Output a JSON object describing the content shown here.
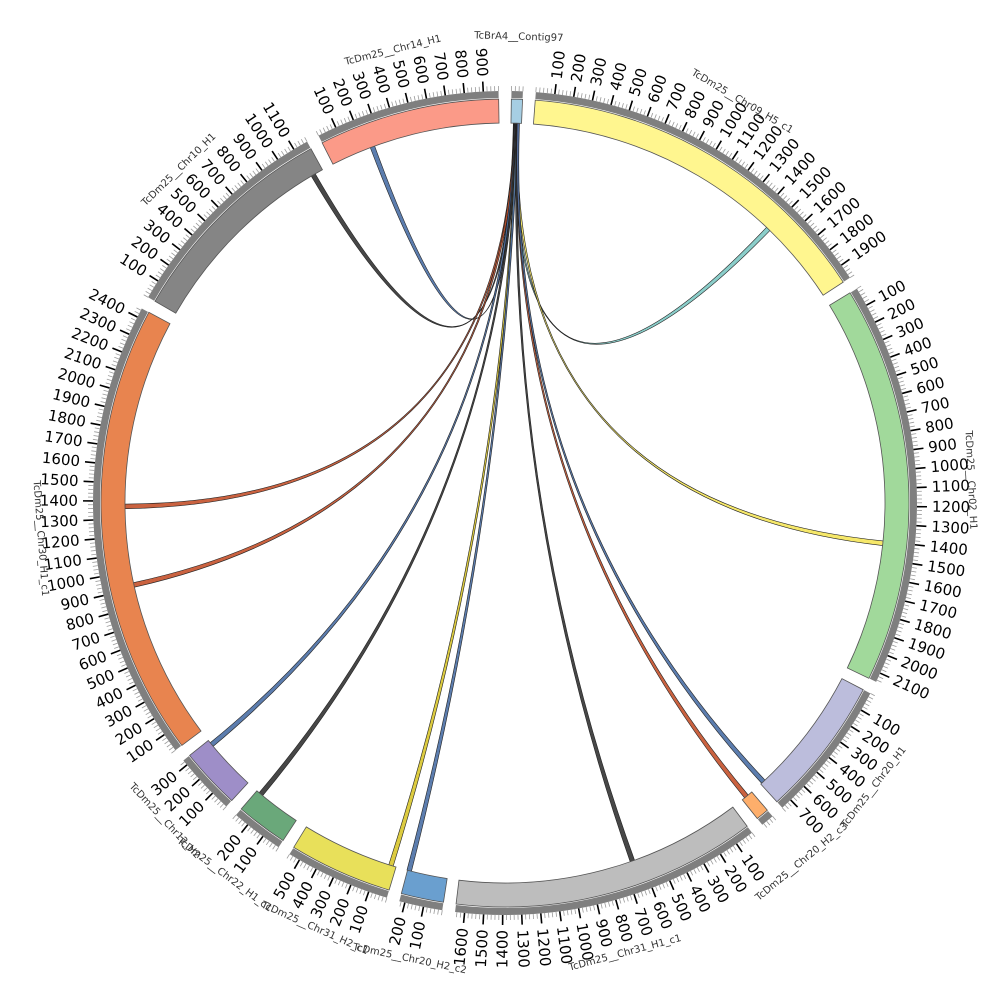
{
  "diagram": {
    "type": "circos",
    "chromosomes": [
      {
        "name": "TcBrA4__Contig97",
        "length": 60,
        "color": "#a6cee3",
        "tick_labels": []
      },
      {
        "name": "TcDm25__Chr09_H5_c1",
        "length": 1980,
        "color": "#fff68f",
        "tick_labels": [
          "100",
          "200",
          "300",
          "400",
          "500",
          "600",
          "700",
          "800",
          "900",
          "1000",
          "1100",
          "1200",
          "1300",
          "1400",
          "1500",
          "1600",
          "1700",
          "1800",
          "1900"
        ]
      },
      {
        "name": "TcDm25__Chr02_H1",
        "length": 2150,
        "color": "#a1d99b",
        "tick_labels": [
          "100",
          "200",
          "300",
          "400",
          "500",
          "600",
          "700",
          "800",
          "900",
          "1000",
          "1100",
          "1200",
          "1300",
          "1400",
          "1500",
          "1600",
          "1700",
          "1800",
          "1900",
          "2000",
          "2100"
        ]
      },
      {
        "name": "TcDm25__Chr20_H1",
        "length": 760,
        "color": "#bcbddc",
        "tick_labels": [
          "100",
          "200",
          "300",
          "400",
          "500",
          "600",
          "700"
        ]
      },
      {
        "name": "TcDm25__Chr20_H2_c3",
        "length": 70,
        "color": "#fdae6b",
        "tick_labels": []
      },
      {
        "name": "TcDm25__Chr31_H1_c1",
        "length": 1650,
        "color": "#bdbdbd",
        "tick_labels": [
          "100",
          "200",
          "300",
          "400",
          "500",
          "600",
          "700",
          "800",
          "900",
          "1000",
          "1100",
          "1200",
          "1300",
          "1400",
          "1500",
          "1600"
        ]
      },
      {
        "name": "TcDm25__Chr20_H2_c2",
        "length": 230,
        "color": "#6a9fcf",
        "tick_labels": [
          "100",
          "200"
        ]
      },
      {
        "name": "TcDm25__Chr31_H2_c1",
        "length": 560,
        "color": "#e8e05a",
        "tick_labels": [
          "100",
          "200",
          "300",
          "400",
          "500"
        ]
      },
      {
        "name": "TcDm25__Chr22_H1_c1",
        "length": 280,
        "color": "#6aa87a",
        "tick_labels": [
          "100",
          "200"
        ]
      },
      {
        "name": "TcDm25__Chr12_H2",
        "length": 330,
        "color": "#9e8ec8",
        "tick_labels": [
          "100",
          "200",
          "300"
        ]
      },
      {
        "name": "TcDm25__Chr30_H1_c1",
        "length": 2450,
        "color": "#e8844f",
        "tick_labels": [
          "100",
          "200",
          "300",
          "400",
          "500",
          "600",
          "700",
          "800",
          "900",
          "1000",
          "1100",
          "1200",
          "1300",
          "1400",
          "1500",
          "1600",
          "1700",
          "1800",
          "1900",
          "2000",
          "2100",
          "2200",
          "2300",
          "2400"
        ]
      },
      {
        "name": "TcDm25__Chr10_H1",
        "length": 1180,
        "color": "#858585",
        "tick_labels": [
          "100",
          "200",
          "300",
          "400",
          "500",
          "600",
          "700",
          "800",
          "900",
          "1000",
          "1100"
        ]
      },
      {
        "name": "TcDm25__Chr14_H1",
        "length": 980,
        "color": "#fb9a88",
        "tick_labels": [
          "100",
          "200",
          "300",
          "400",
          "500",
          "600",
          "700",
          "800",
          "900"
        ]
      }
    ],
    "links": [
      {
        "source": "TcBrA4__Contig97",
        "source_pos": 20,
        "target": "TcDm25__Chr10_H1",
        "target_pos": 1120,
        "color": "#333333"
      },
      {
        "source": "TcBrA4__Contig97",
        "source_pos": 22,
        "target": "TcDm25__Chr14_H1",
        "target_pos": 245,
        "color": "#4a6fa5"
      },
      {
        "source": "TcBrA4__Contig97",
        "source_pos": 30,
        "target": "TcDm25__Chr09_H5_c1",
        "target_pos": 1490,
        "color": "#7ec9c4"
      },
      {
        "source": "TcBrA4__Contig97",
        "source_pos": 35,
        "target": "TcDm25__Chr02_H1",
        "target_pos": 1410,
        "color": "#f5e65a"
      },
      {
        "source": "TcBrA4__Contig97",
        "source_pos": 24,
        "target": "TcDm25__Chr30_H1_c1",
        "target_pos": 1370,
        "color": "#c4512b"
      },
      {
        "source": "TcBrA4__Contig97",
        "source_pos": 26,
        "target": "TcDm25__Chr30_H1_c1",
        "target_pos": 920,
        "color": "#c4512b"
      },
      {
        "source": "TcBrA4__Contig97",
        "source_pos": 28,
        "target": "TcDm25__Chr12_H2",
        "target_pos": 300,
        "color": "#4a6fa5"
      },
      {
        "source": "TcBrA4__Contig97",
        "source_pos": 32,
        "target": "TcDm25__Chr22_H1_c1",
        "target_pos": 250,
        "color": "#333333"
      },
      {
        "source": "TcBrA4__Contig97",
        "source_pos": 34,
        "target": "TcDm25__Chr31_H2_c1",
        "target_pos": 30,
        "color": "#d8c52b"
      },
      {
        "source": "TcBrA4__Contig97",
        "source_pos": 36,
        "target": "TcDm25__Chr20_H2_c2",
        "target_pos": 220,
        "color": "#4a6fa5"
      },
      {
        "source": "TcBrA4__Contig97",
        "source_pos": 38,
        "target": "TcDm25__Chr31_H1_c1",
        "target_pos": 650,
        "color": "#333333"
      },
      {
        "source": "TcBrA4__Contig97",
        "source_pos": 40,
        "target": "TcDm25__Chr20_H2_c3",
        "target_pos": 40,
        "color": "#c4512b"
      },
      {
        "source": "TcBrA4__Contig97",
        "source_pos": 42,
        "target": "TcDm25__Chr20_H1",
        "target_pos": 740,
        "color": "#4a6fa5"
      }
    ]
  }
}
